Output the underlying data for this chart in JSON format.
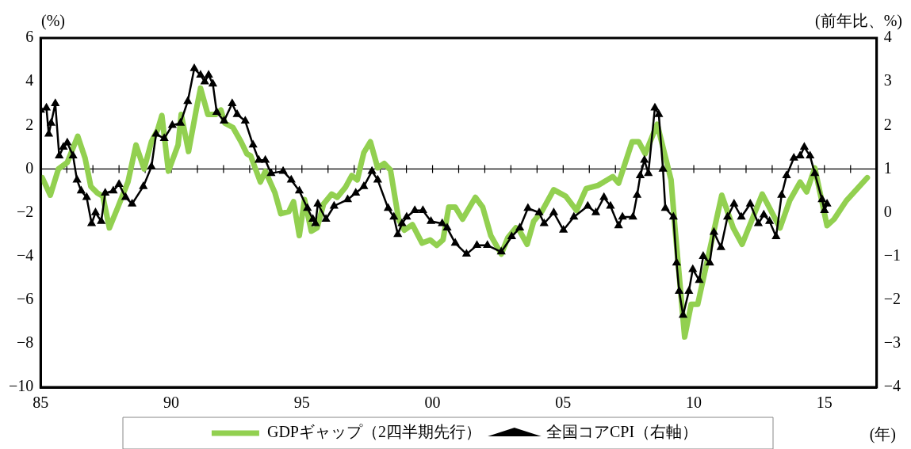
{
  "chart_data": {
    "type": "line",
    "xlabel": "(年)",
    "ylabel": "(%)",
    "y2label": "(前年比、%)",
    "xlim": [
      1985,
      2017
    ],
    "xticks": [
      {
        "value": 1985,
        "label": "85"
      },
      {
        "value": 1990,
        "label": "90"
      },
      {
        "value": 1995,
        "label": "95"
      },
      {
        "value": 2000,
        "label": "00"
      },
      {
        "value": 2005,
        "label": "05"
      },
      {
        "value": 2010,
        "label": "10"
      },
      {
        "value": 2015,
        "label": "15"
      }
    ],
    "ylim": [
      -10,
      6
    ],
    "yticks": [
      -10,
      -8,
      -6,
      -4,
      -2,
      0,
      2,
      4,
      6
    ],
    "y2lim": [
      -4,
      4
    ],
    "y2ticks": [
      -4,
      -3,
      -2,
      -1,
      0,
      1,
      2,
      3,
      4
    ],
    "grid": false,
    "legend": "bottom",
    "ref_lines": [
      {
        "axis": "y",
        "value": 0,
        "color": "#000000"
      }
    ],
    "series": [
      {
        "name": "GDPギャップ（2四半期先行）",
        "color": "#92d050",
        "marker": "none",
        "x": [
          1985.06,
          1985.37,
          1985.68,
          1986.02,
          1986.42,
          1986.7,
          1986.92,
          1987.17,
          1987.38,
          1987.63,
          1987.94,
          1988.34,
          1988.65,
          1988.96,
          1989.24,
          1989.48,
          1989.64,
          1989.89,
          1990.26,
          1990.38,
          1990.66,
          1990.97,
          1991.12,
          1991.4,
          1991.71,
          1991.9,
          1992.05,
          1992.36,
          1992.67,
          1992.89,
          1993.04,
          1993.41,
          1993.6,
          1993.97,
          1994.19,
          1994.5,
          1994.68,
          1994.9,
          1995.1,
          1995.36,
          1995.58,
          1995.83,
          1996.14,
          1996.35,
          1996.66,
          1996.91,
          1997.12,
          1997.37,
          1997.62,
          1997.9,
          1998.15,
          1998.39,
          1998.7,
          1998.92,
          1999.23,
          1999.6,
          1999.91,
          2000.16,
          2000.4,
          2000.62,
          2000.87,
          2001.15,
          2001.64,
          2001.92,
          2002.23,
          2002.63,
          2002.88,
          2003.19,
          2003.34,
          2003.62,
          2003.87,
          2004.18,
          2004.64,
          2005.1,
          2005.51,
          2005.88,
          2006.34,
          2006.9,
          2007.12,
          2007.64,
          2007.89,
          2008.14,
          2008.6,
          2009.13,
          2009.28,
          2009.65,
          2009.9,
          2010.15,
          2011.07,
          2011.51,
          2011.85,
          2012.62,
          2013.3,
          2013.67,
          2014.07,
          2014.32,
          2014.63,
          2015.1,
          2015.37,
          2015.84,
          2016.64
        ],
        "values": [
          -0.4,
          -1.2,
          0.0,
          0.3,
          1.5,
          0.5,
          -0.8,
          -1.1,
          -1.25,
          -2.7,
          -1.8,
          -0.6,
          1.1,
          0.0,
          1.25,
          1.8,
          2.45,
          -0.1,
          1.1,
          2.5,
          0.8,
          2.8,
          3.7,
          2.5,
          2.5,
          2.7,
          2.1,
          1.9,
          1.25,
          0.7,
          0.6,
          -0.6,
          -0.1,
          -1.1,
          -2.05,
          -1.95,
          -1.5,
          -3.05,
          -1.4,
          -2.85,
          -2.7,
          -1.6,
          -1.15,
          -1.3,
          -0.85,
          -0.3,
          -0.5,
          0.75,
          1.25,
          0.05,
          0.25,
          -0.05,
          -2.3,
          -2.8,
          -2.55,
          -3.4,
          -3.25,
          -3.5,
          -3.25,
          -1.75,
          -1.75,
          -2.3,
          -1.3,
          -1.75,
          -3.05,
          -3.9,
          -3.15,
          -2.7,
          -2.85,
          -3.45,
          -2.4,
          -1.95,
          -0.95,
          -1.25,
          -1.9,
          -0.9,
          -0.75,
          -0.35,
          -0.65,
          1.25,
          1.25,
          0.7,
          2.05,
          -0.5,
          -2.7,
          -7.7,
          -6.2,
          -6.2,
          -1.2,
          -2.7,
          -3.45,
          -1.15,
          -2.7,
          -1.45,
          -0.6,
          -1.05,
          0.05,
          -2.6,
          -2.3,
          -1.45,
          -0.4
        ]
      },
      {
        "name": "全国コアCPI（右軸）",
        "color": "#000000",
        "marker": "triangle",
        "axis": "y2",
        "x": [
          1985.0,
          1985.22,
          1985.31,
          1985.4,
          1985.56,
          1985.71,
          1985.87,
          1986.02,
          1986.24,
          1986.39,
          1986.55,
          1986.76,
          1986.95,
          1987.1,
          1987.32,
          1987.47,
          1987.78,
          1988.0,
          1988.25,
          1988.5,
          1988.93,
          1989.24,
          1989.42,
          1989.73,
          1990.04,
          1990.35,
          1990.63,
          1990.88,
          1991.12,
          1991.28,
          1991.43,
          1991.59,
          1991.74,
          1992.02,
          1992.33,
          1992.52,
          1992.83,
          1993.13,
          1993.35,
          1993.6,
          1993.82,
          1994.28,
          1994.59,
          1994.9,
          1995.21,
          1995.42,
          1995.52,
          1995.61,
          1995.92,
          1996.23,
          1996.75,
          1997.06,
          1997.37,
          1997.68,
          1997.9,
          1998.3,
          1998.52,
          1998.67,
          1998.83,
          1999.01,
          1999.32,
          1999.63,
          1999.94,
          2000.37,
          2000.56,
          2000.87,
          2001.3,
          2001.7,
          2002.1,
          2002.63,
          2003.03,
          2003.34,
          2003.65,
          2004.08,
          2004.27,
          2004.64,
          2005.01,
          2005.41,
          2005.94,
          2006.25,
          2006.56,
          2006.81,
          2007.12,
          2007.27,
          2007.67,
          2007.83,
          2007.95,
          2008.11,
          2008.26,
          2008.51,
          2008.66,
          2008.82,
          2008.91,
          2009.22,
          2009.34,
          2009.44,
          2009.59,
          2009.81,
          2009.96,
          2010.21,
          2010.36,
          2010.61,
          2010.77,
          2011.04,
          2011.29,
          2011.54,
          2011.82,
          2012.16,
          2012.47,
          2012.68,
          2012.9,
          2013.15,
          2013.36,
          2013.55,
          2013.83,
          2014.07,
          2014.23,
          2014.45,
          2014.63,
          2014.91,
          2015.0,
          2015.1
        ],
        "values": [
          2.35,
          2.4,
          1.8,
          2.05,
          2.5,
          1.3,
          1.5,
          1.6,
          1.3,
          0.75,
          0.5,
          0.35,
          -0.25,
          0.0,
          -0.2,
          0.45,
          0.5,
          0.65,
          0.35,
          0.2,
          0.6,
          1.05,
          1.8,
          1.7,
          2.0,
          2.05,
          2.55,
          3.3,
          3.15,
          3.0,
          3.15,
          2.95,
          2.3,
          2.1,
          2.5,
          2.25,
          2.1,
          1.55,
          1.2,
          1.2,
          0.9,
          0.95,
          0.75,
          0.5,
          0.1,
          -0.15,
          -0.25,
          0.2,
          -0.15,
          0.15,
          0.3,
          0.45,
          0.6,
          0.95,
          0.75,
          0.1,
          -0.1,
          -0.5,
          -0.25,
          -0.1,
          0.05,
          0.05,
          -0.2,
          -0.25,
          -0.35,
          -0.7,
          -0.95,
          -0.75,
          -0.75,
          -0.9,
          -0.55,
          -0.35,
          0.1,
          0.0,
          -0.25,
          0.0,
          -0.4,
          -0.1,
          0.15,
          0.0,
          0.35,
          0.15,
          -0.3,
          -0.1,
          -0.1,
          0.4,
          0.85,
          1.2,
          0.9,
          2.4,
          2.25,
          1.0,
          0.1,
          -0.1,
          -1.15,
          -1.8,
          -2.35,
          -1.8,
          -1.3,
          -1.55,
          -1.0,
          -1.15,
          -0.45,
          -0.8,
          -0.1,
          0.2,
          -0.1,
          0.2,
          -0.25,
          -0.05,
          -0.2,
          -0.55,
          0.4,
          0.85,
          1.25,
          1.3,
          1.5,
          1.3,
          0.9,
          0.3,
          0.05,
          0.2
        ]
      }
    ]
  }
}
